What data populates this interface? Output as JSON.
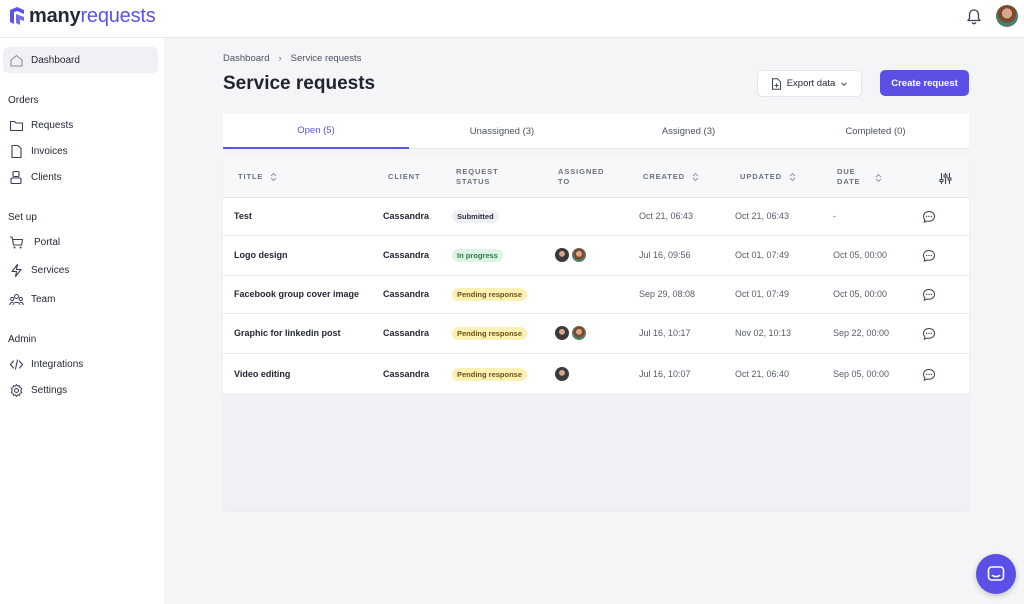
{
  "logo": {
    "part1": "many",
    "part2": "requests"
  },
  "sidebar": {
    "dashboard": "Dashboard",
    "orders_label": "Orders",
    "orders": [
      "Requests",
      "Invoices",
      "Clients"
    ],
    "setup_label": "Set up",
    "setup": [
      "Portal",
      "Services",
      "Team"
    ],
    "admin_label": "Admin",
    "admin": [
      "Integrations",
      "Settings"
    ]
  },
  "breadcrumb": {
    "root": "Dashboard",
    "current": "Service requests"
  },
  "page": {
    "title": "Service requests"
  },
  "actions": {
    "export": "Export data",
    "create": "Create request"
  },
  "tabs": [
    "Open (5)",
    "Unassigned (3)",
    "Assigned (3)",
    "Completed (0)"
  ],
  "table": {
    "headers": {
      "title": "TITLE",
      "client": "CLIENT",
      "status_1": "REQUEST",
      "status_2": "STATUS",
      "assigned_1": "ASSIGNED",
      "assigned_2": "TO",
      "created": "CREATED",
      "updated": "UPDATED",
      "due_1": "DUE",
      "due_2": "DATE"
    },
    "rows": [
      {
        "title": "Test",
        "client": "Cassandra",
        "status": "Submitted",
        "created": "Oct 21, 06:43",
        "updated": "Oct 21, 06:43",
        "due": "-"
      },
      {
        "title": "Logo design",
        "client": "Cassandra",
        "status": "In progress",
        "created": "Jul 16, 09:56",
        "updated": "Oct 01, 07:49",
        "due": "Oct 05, 00:00"
      },
      {
        "title": "Facebook group cover image",
        "client": "Cassandra",
        "status": "Pending response",
        "created": "Sep 29, 08:08",
        "updated": "Oct 01, 07:49",
        "due": "Oct 05, 00:00"
      },
      {
        "title": "Graphic for linkedin post",
        "client": "Cassandra",
        "status": "Pending response",
        "created": "Jul 16, 10:17",
        "updated": "Nov 02, 10:13",
        "due": "Sep 22, 00:00"
      },
      {
        "title": "Video editing",
        "client": "Cassandra",
        "status": "Pending response",
        "created": "Jul 16, 10:07",
        "updated": "Oct 21, 06:40",
        "due": "Sep 05, 00:00"
      }
    ]
  },
  "colors": {
    "accent": "#5b50e5",
    "in_progress_bg": "#ddf3e4",
    "pending_bg": "#fdf0b4"
  }
}
